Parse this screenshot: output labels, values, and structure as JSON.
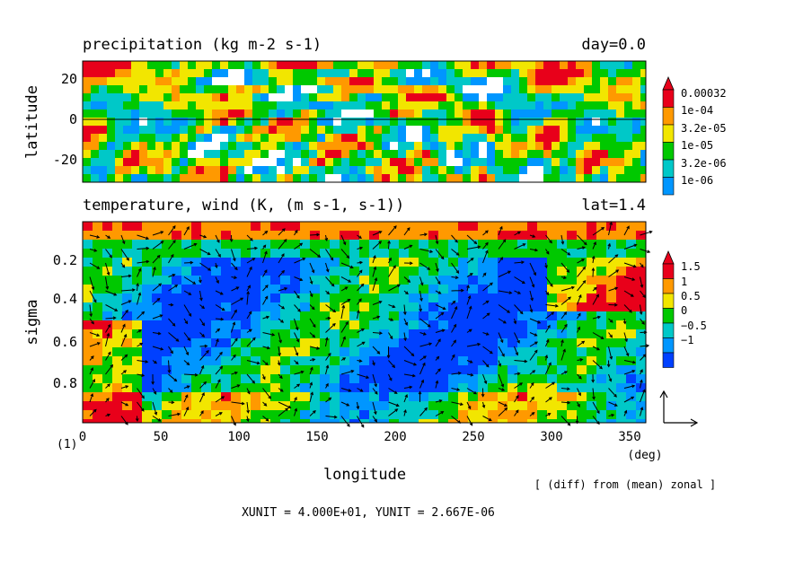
{
  "chart_data": [
    {
      "type": "heatmap",
      "title": "precipitation (kg m-2 s-1)",
      "title_right": "day=0.0",
      "ylabel": "latitude",
      "yticks": [
        "20",
        "0",
        "-20"
      ],
      "ylim": [
        -30,
        30
      ],
      "xlim": [
        0,
        360
      ],
      "colorbar": {
        "labels": [
          "0.00032",
          "1e-04",
          "3.2e-05",
          "1e-05",
          "3.2e-06",
          "1e-06"
        ],
        "colors": [
          "#e8001a",
          "#ff9900",
          "#f2e600",
          "#00c800",
          "#00c8c8",
          "#0096ff"
        ]
      }
    },
    {
      "type": "heatmap",
      "title": "temperature, wind (K, (m s-1, s-1))",
      "title_right": "lat=1.4",
      "ylabel": "sigma",
      "yticks": [
        "0.2",
        "0.4",
        "0.6",
        "0.8"
      ],
      "ylim": [
        1.0,
        0.05
      ],
      "xlabel": "longitude",
      "xticks": [
        "0",
        "50",
        "100",
        "150",
        "200",
        "250",
        "300",
        "350"
      ],
      "xunit_label": "(deg)",
      "xlim": [
        0,
        360
      ],
      "colorbar": {
        "labels": [
          "1.5",
          "1",
          "0.5",
          "0",
          "−0.5",
          "−1"
        ],
        "colors": [
          "#e8001a",
          "#ff9900",
          "#f2e600",
          "#00c800",
          "#00c8c8",
          "#0096ff",
          "#0040ff"
        ]
      }
    }
  ],
  "figure": {
    "panel_index": "(1)",
    "note": "[ (diff) from (mean) zonal ]",
    "units": "XUNIT = 4.000E+01, YUNIT = 2.667E-06"
  }
}
